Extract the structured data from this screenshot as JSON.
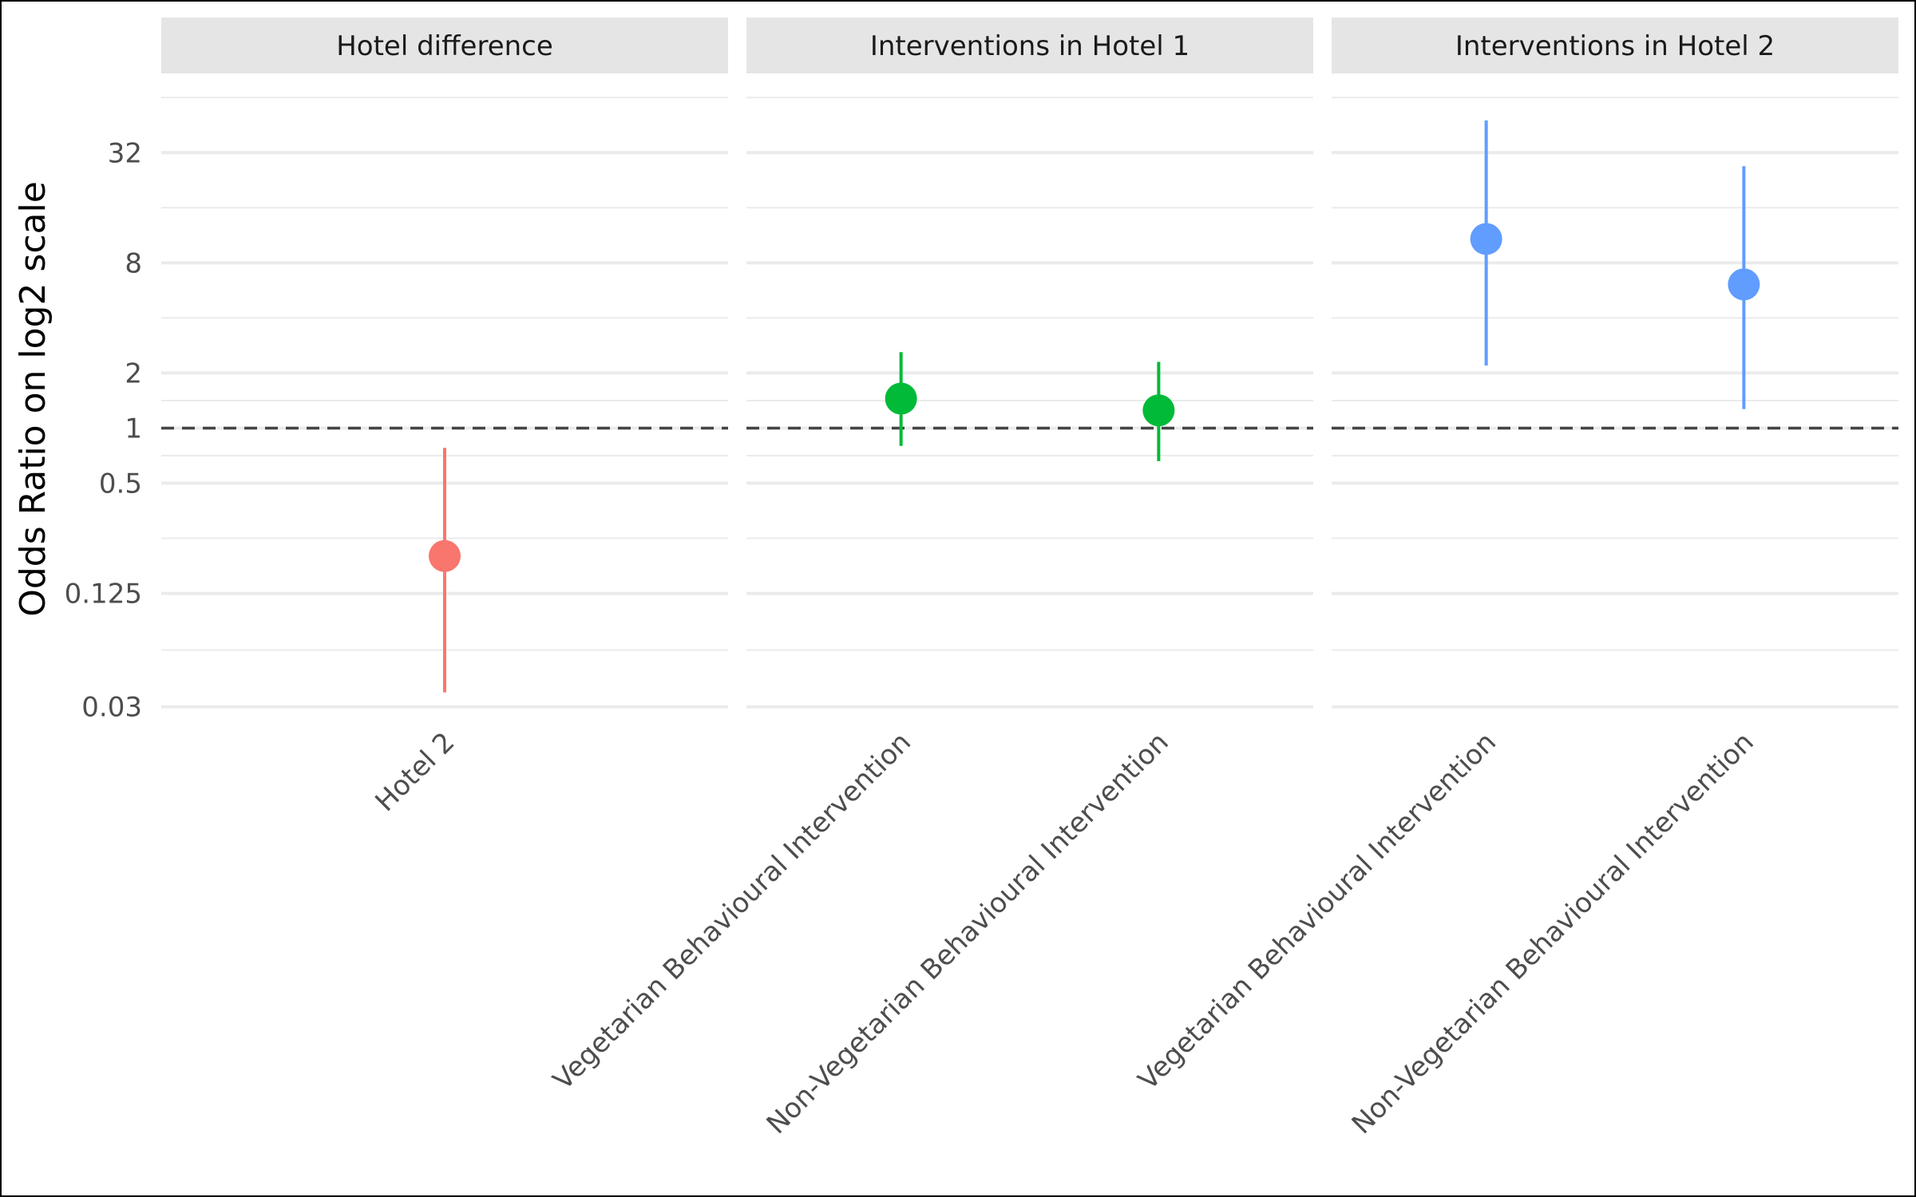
{
  "chart_data": {
    "type": "scatter",
    "subtype": "point-range (forest plot), faceted",
    "title": "",
    "xlabel": "",
    "ylabel": "Odds Ratio on log2 scale",
    "y_scale": "log2",
    "y_ticks": [
      0.03,
      0.125,
      0.5,
      1,
      2,
      8,
      32
    ],
    "y_tick_labels": [
      "0.03",
      "0.125",
      "0.5",
      "1",
      "2",
      "8",
      "32"
    ],
    "ylim": [
      0.026,
      80
    ],
    "reference_line": {
      "y": 1,
      "style": "dashed",
      "color": "#444444"
    },
    "grid": true,
    "legend": "none",
    "facets": [
      {
        "label": "Hotel difference",
        "color": "#F8766D",
        "categories": [
          "Hotel 2"
        ],
        "points": [
          {
            "category": "Hotel 2",
            "estimate": 0.2,
            "lower": 0.036,
            "upper": 0.78
          }
        ]
      },
      {
        "label": "Interventions in Hotel 1",
        "color": "#00BA38",
        "categories": [
          "Vegetarian Behavioural Intervention",
          "Non-Vegetarian Behavioural Intervention"
        ],
        "points": [
          {
            "category": "Vegetarian Behavioural Intervention",
            "estimate": 1.45,
            "lower": 0.8,
            "upper": 2.6
          },
          {
            "category": "Non-Vegetarian Behavioural Intervention",
            "estimate": 1.25,
            "lower": 0.66,
            "upper": 2.3
          }
        ]
      },
      {
        "label": "Interventions in Hotel 2",
        "color": "#619CFF",
        "categories": [
          "Vegetarian Behavioural Intervention",
          "Non-Vegetarian Behavioural Intervention"
        ],
        "points": [
          {
            "category": "Vegetarian Behavioural Intervention",
            "estimate": 10.8,
            "lower": 2.2,
            "upper": 48
          },
          {
            "category": "Non-Vegetarian Behavioural Intervention",
            "estimate": 6.1,
            "lower": 1.27,
            "upper": 27
          }
        ]
      }
    ]
  }
}
